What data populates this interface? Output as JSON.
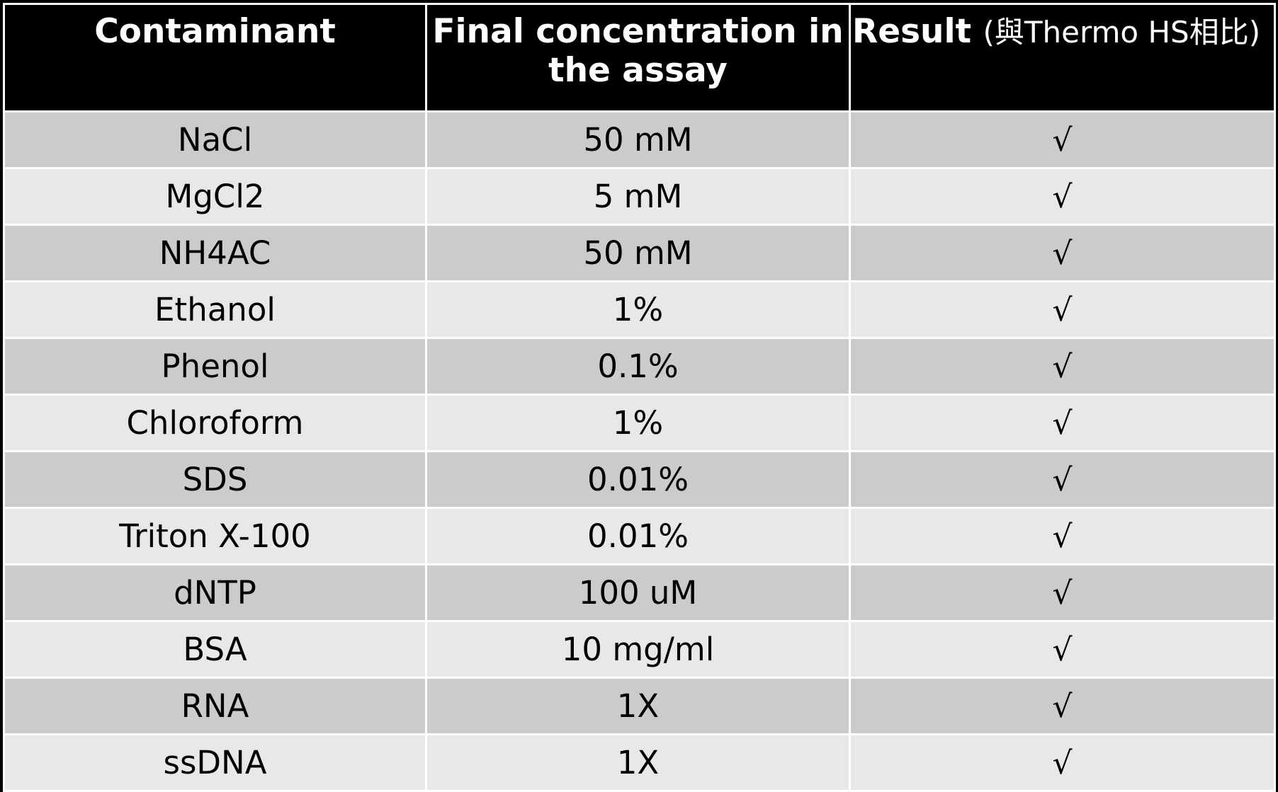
{
  "table": {
    "headers": {
      "contaminant": "Contaminant",
      "concentration": "Final concentration in the assay",
      "result": "Result",
      "result_note": "(與Thermo HS相比)"
    },
    "rows": [
      {
        "contaminant": "NaCl",
        "concentration": "50 mM",
        "result": "√"
      },
      {
        "contaminant": "MgCl2",
        "concentration": "5 mM",
        "result": "√"
      },
      {
        "contaminant": "NH4AC",
        "concentration": "50 mM",
        "result": "√"
      },
      {
        "contaminant": "Ethanol",
        "concentration": "1%",
        "result": "√"
      },
      {
        "contaminant": "Phenol",
        "concentration": "0.1%",
        "result": "√"
      },
      {
        "contaminant": "Chloroform",
        "concentration": "1%",
        "result": "√"
      },
      {
        "contaminant": "SDS",
        "concentration": "0.01%",
        "result": "√"
      },
      {
        "contaminant": "Triton X-100",
        "concentration": "0.01%",
        "result": "√"
      },
      {
        "contaminant": "dNTP",
        "concentration": "100 uM",
        "result": "√"
      },
      {
        "contaminant": "BSA",
        "concentration": "10 mg/ml",
        "result": "√"
      },
      {
        "contaminant": "RNA",
        "concentration": "1X",
        "result": "√"
      },
      {
        "contaminant": "ssDNA",
        "concentration": "1X",
        "result": "√"
      }
    ]
  },
  "colors": {
    "header_bg": "#000000",
    "header_text": "#ffffff",
    "row_dark": "#cbcbcb",
    "row_light": "#e8e8e8"
  }
}
